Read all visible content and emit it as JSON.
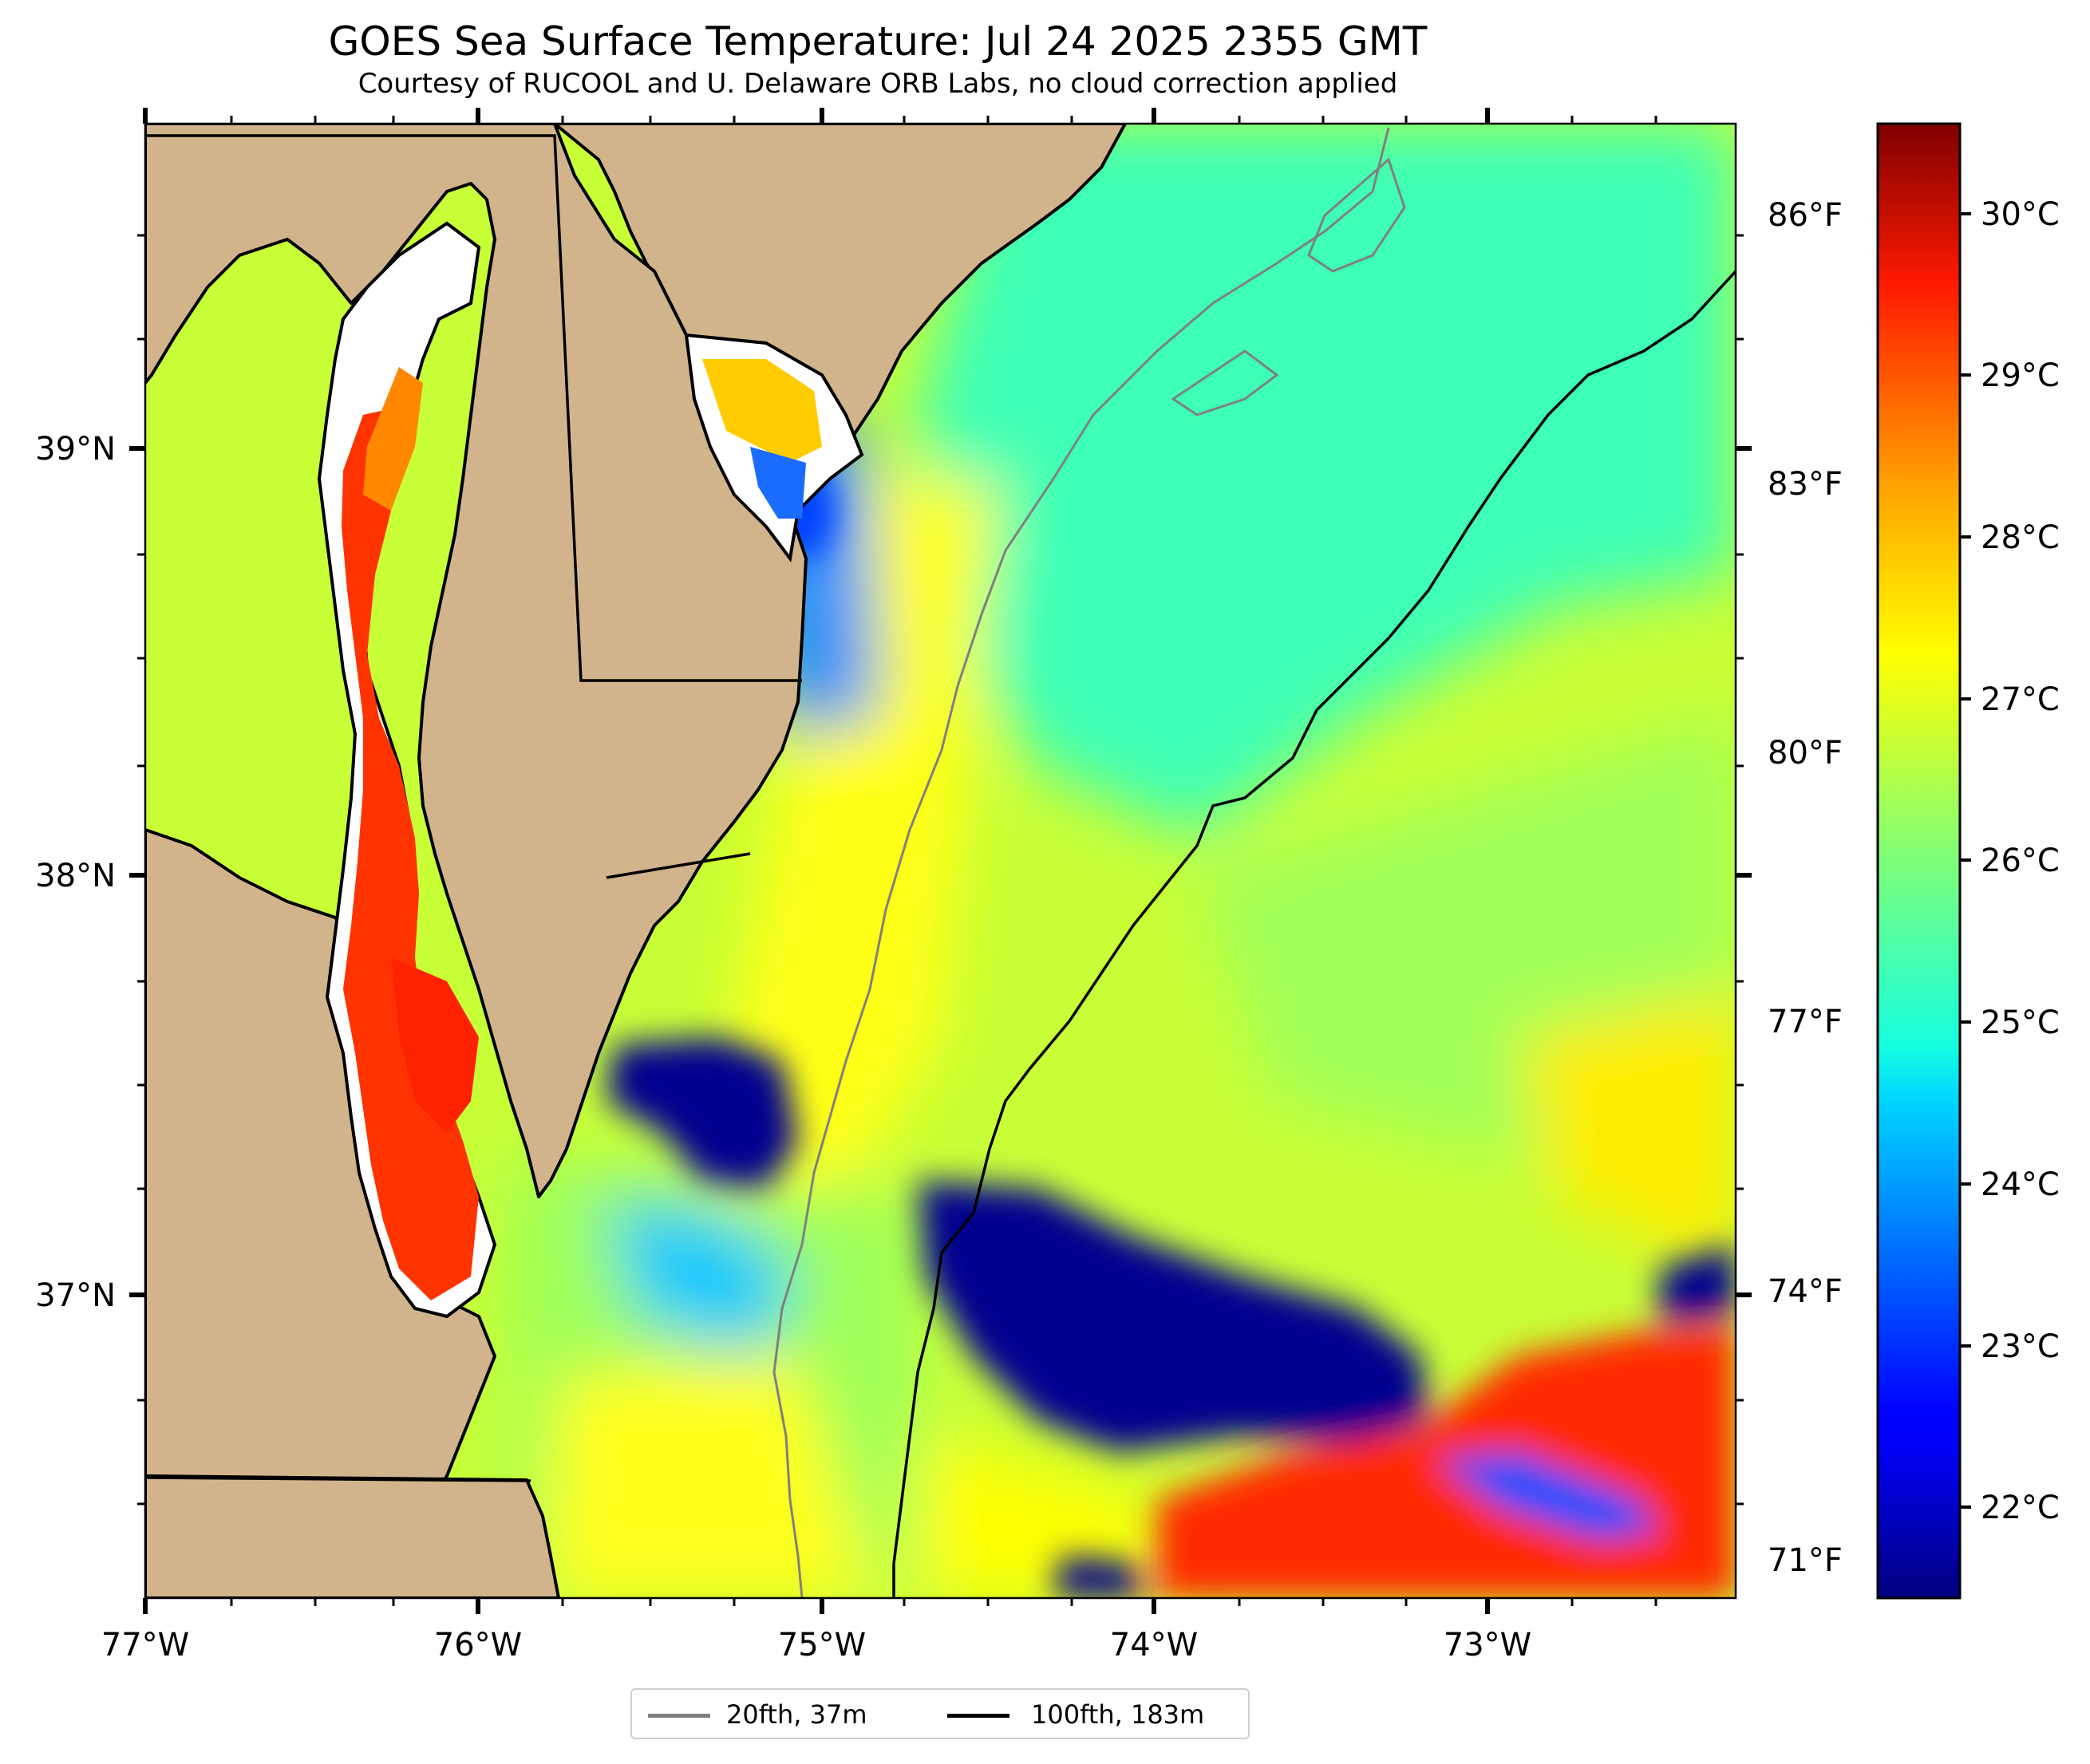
{
  "title": "GOES Sea Surface Temperature: Jul 24 2025 2355 GMT",
  "subtitle": "Courtesy of RUCOOL and U. Delaware ORB Labs, no cloud correction applied",
  "map": {
    "lon_ticks": [
      "77°W",
      "76°W",
      "75°W",
      "74°W",
      "73°W"
    ],
    "lat_ticks": [
      "39°N",
      "38°N",
      "37°N"
    ],
    "land_color": "#D2B48C",
    "water_blank_color": "#ffffff"
  },
  "colorbar": {
    "colormap": "jet",
    "range_c": [
      21.5,
      30.5
    ],
    "celsius_ticks": [
      "30°C",
      "29°C",
      "28°C",
      "27°C",
      "26°C",
      "25°C",
      "24°C",
      "23°C",
      "22°C"
    ],
    "fahrenheit_ticks": [
      "86°F",
      "83°F",
      "80°F",
      "77°F",
      "74°F",
      "71°F"
    ]
  },
  "legend": {
    "items": [
      {
        "label": "20fth, 37m",
        "color": "#808080"
      },
      {
        "label": "100fth, 183m",
        "color": "#000000"
      }
    ]
  }
}
